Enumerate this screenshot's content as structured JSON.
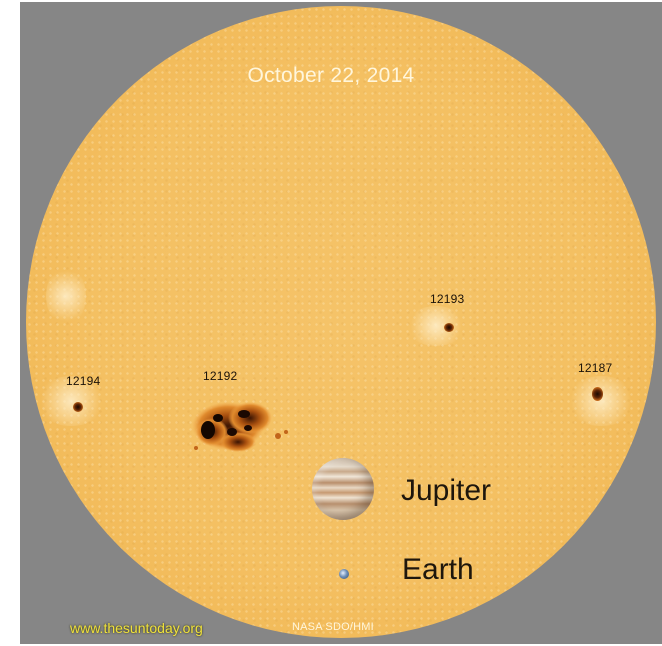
{
  "date": "October 22, 2014",
  "sunspots": [
    {
      "id": "12194"
    },
    {
      "id": "12192"
    },
    {
      "id": "12193"
    },
    {
      "id": "12187"
    }
  ],
  "planets": {
    "jupiter": "Jupiter",
    "earth": "Earth"
  },
  "credit": "NASA SDO/HMI",
  "website": "www.thesuntoday.org",
  "colors": {
    "sun": "#f4c062",
    "background": "#868686",
    "website_text": "#f0e23c"
  }
}
